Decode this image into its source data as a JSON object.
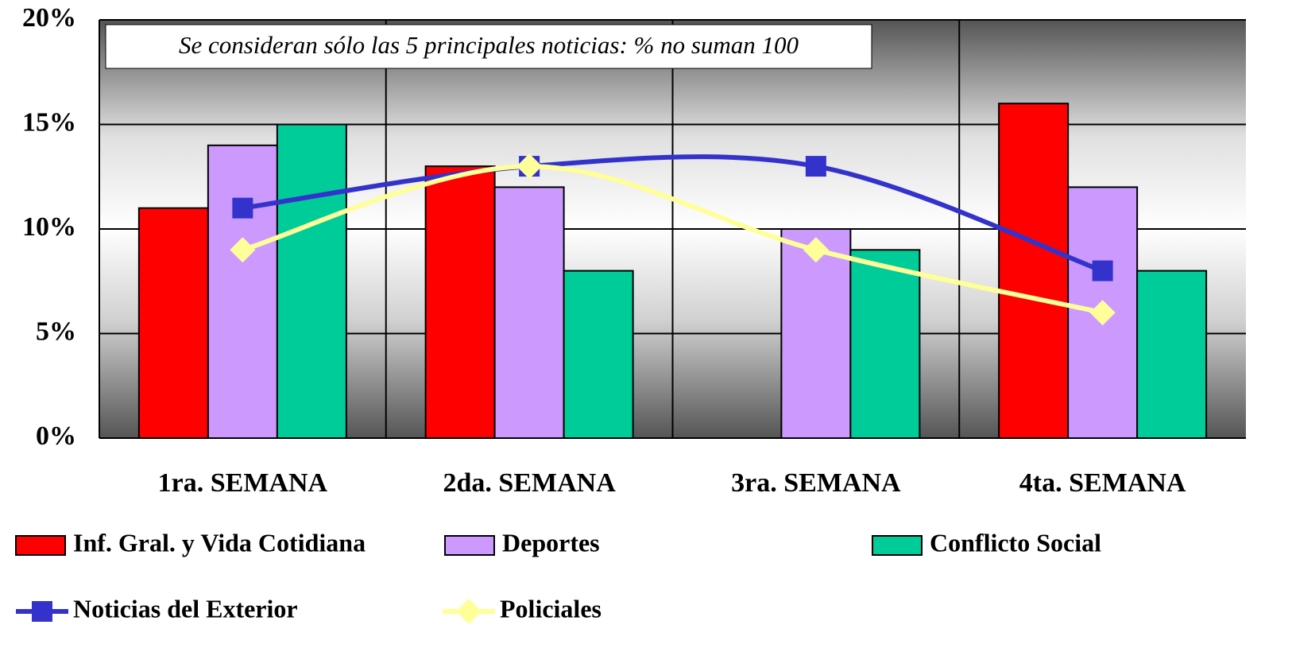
{
  "chart_data": {
    "type": "bar",
    "annotation": "Se consideran sólo las 5 principales noticias: % no suman 100",
    "categories": [
      "1ra. SEMANA",
      "2da. SEMANA",
      "3ra. SEMANA",
      "4ta. SEMANA"
    ],
    "ylim": [
      0,
      20
    ],
    "yticks": [
      {
        "value": 0,
        "label": "0%"
      },
      {
        "value": 5,
        "label": "5%"
      },
      {
        "value": 10,
        "label": "10%"
      },
      {
        "value": 15,
        "label": "15%"
      },
      {
        "value": 20,
        "label": "20%"
      }
    ],
    "grid": true,
    "series": [
      {
        "name": "Inf. Gral. y Vida Cotidiana",
        "type": "bar",
        "color": "#ff0000",
        "values": [
          11,
          13,
          null,
          16
        ]
      },
      {
        "name": "Deportes",
        "type": "bar",
        "color": "#cc99ff",
        "values": [
          14,
          12,
          10,
          12
        ]
      },
      {
        "name": "Conflicto Social",
        "type": "bar",
        "color": "#00cc99",
        "values": [
          15,
          8,
          9,
          8
        ]
      },
      {
        "name": "Noticias del Exterior",
        "type": "line",
        "marker": "square",
        "color": "#3333cc",
        "values": [
          11,
          13,
          13,
          8
        ]
      },
      {
        "name": "Policiales",
        "type": "line",
        "marker": "diamond",
        "color": "#ffff99",
        "values": [
          9,
          13,
          9,
          6
        ]
      }
    ]
  }
}
